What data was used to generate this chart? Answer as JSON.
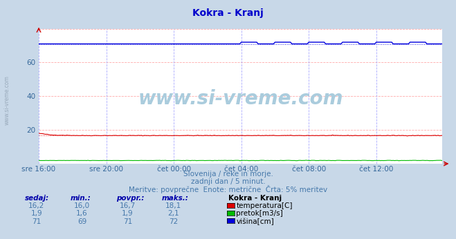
{
  "title": "Kokra - Kranj",
  "title_color": "#0000cc",
  "bg_color": "#c8d8e8",
  "plot_bg_color": "#ffffff",
  "grid_color_h": "#ffaaaa",
  "grid_color_v": "#aaaaff",
  "tick_label_color": "#336699",
  "x_labels": [
    "sre 16:00",
    "sre 20:00",
    "čet 00:00",
    "čet 04:00",
    "čet 08:00",
    "čet 12:00"
  ],
  "x_positions": [
    0,
    48,
    96,
    144,
    192,
    240
  ],
  "total_points": 288,
  "ylim": [
    0,
    80
  ],
  "subtitle1": "Slovenija / reke in morje.",
  "subtitle2": "zadnji dan / 5 minut.",
  "subtitle3": "Meritve: povprečne  Enote: metrične  Črta: 5% meritev",
  "subtitle_color": "#4477aa",
  "watermark": "www.si-vreme.com",
  "watermark_color": "#aaccdd",
  "legend_title": "Kokra - Kranj",
  "legend_items": [
    {
      "label": "temperatura[C]",
      "color": "#dd0000"
    },
    {
      "label": "pretok[m3/s]",
      "color": "#00bb00"
    },
    {
      "label": "višina[cm]",
      "color": "#0000dd"
    }
  ],
  "table_headers": [
    "sedaj:",
    "min.:",
    "povpr.:",
    "maks.:"
  ],
  "table_data": [
    [
      "16,2",
      "16,0",
      "16,7",
      "18,1"
    ],
    [
      "1,9",
      "1,6",
      "1,9",
      "2,1"
    ],
    [
      "71",
      "69",
      "71",
      "72"
    ]
  ],
  "sidebar_text": "www.si-vreme.com",
  "sidebar_color": "#99aabb"
}
